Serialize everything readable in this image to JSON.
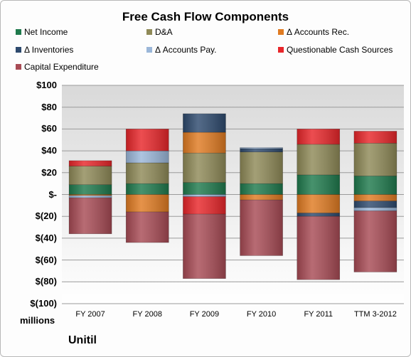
{
  "chart_data": {
    "type": "bar",
    "stacked": true,
    "title": "Free Cash Flow Components",
    "units_label": "millions",
    "company": "Unitil",
    "categories": [
      "FY 2007",
      "FY 2008",
      "FY 2009",
      "FY 2010",
      "FY 2011",
      "TTM 3-2012"
    ],
    "y_tick_labels": [
      "$100",
      "$80",
      "$60",
      "$40",
      "$20",
      "$-",
      "$(20)",
      "$(40)",
      "$(60)",
      "$(80)",
      "$(100)"
    ],
    "ylim": [
      -100,
      100
    ],
    "legend_position": "top",
    "series": [
      {
        "name": "Net Income",
        "color": "#1f7a4d",
        "values": [
          9,
          10,
          11,
          10,
          18,
          17
        ]
      },
      {
        "name": "D&A",
        "color": "#8f8a58",
        "values": [
          17,
          19,
          27,
          29,
          28,
          30
        ]
      },
      {
        "name": "Δ Accounts Rec.",
        "color": "#e07b22",
        "values": [
          -1,
          -16,
          19,
          -5,
          -17,
          -6
        ]
      },
      {
        "name": "Δ Inventories",
        "color": "#2e4a6e",
        "values": [
          0,
          0,
          17,
          3,
          -3,
          -6
        ]
      },
      {
        "name": "Δ Accounts Pay.",
        "color": "#9bb7d9",
        "values": [
          -2,
          11,
          -2,
          1,
          0,
          -3
        ]
      },
      {
        "name": "Questionable Cash Sources",
        "color": "#e8262a",
        "values": [
          5,
          20,
          -16,
          0,
          14,
          11
        ]
      },
      {
        "name": "Capital Expenditure",
        "color": "#a84b55",
        "values": [
          -33,
          -28,
          -59,
          -51,
          -58,
          -56
        ]
      }
    ]
  }
}
